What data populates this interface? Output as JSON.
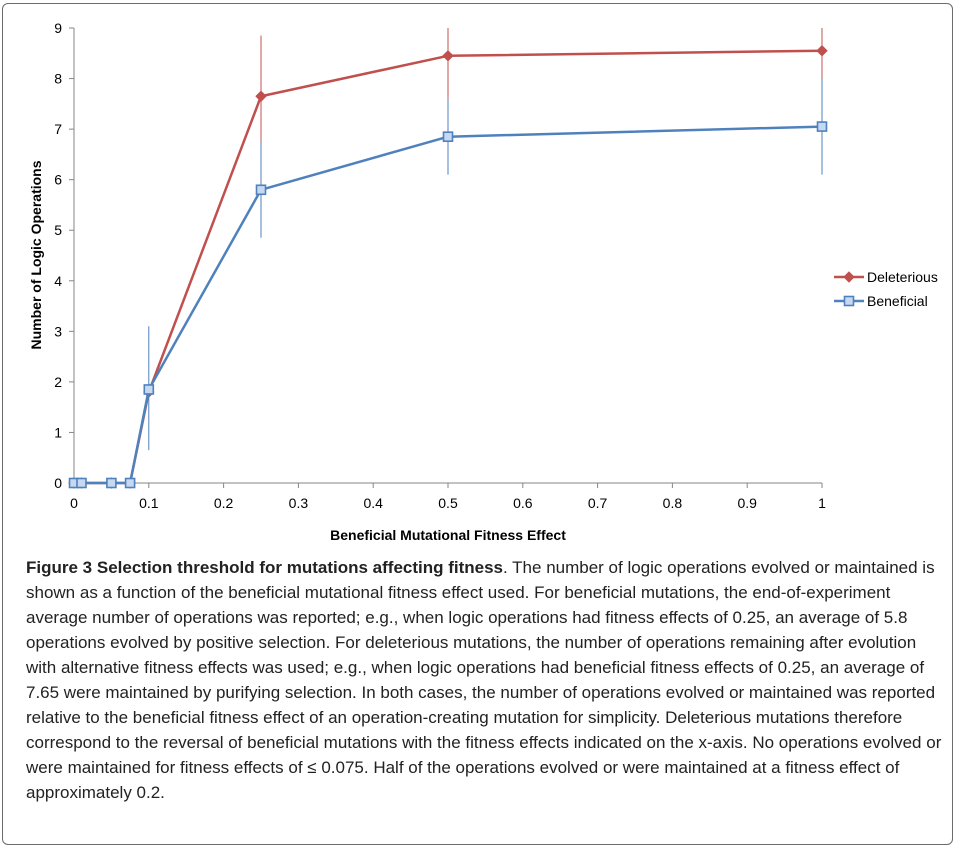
{
  "chart_data": {
    "type": "line",
    "xlabel": "Beneficial Mutational Fitness Effect",
    "ylabel": "Number of Logic Operations",
    "xlim": [
      0,
      1
    ],
    "ylim": [
      0,
      9
    ],
    "x_ticks": [
      "0",
      "0.1",
      "0.2",
      "0.3",
      "0.4",
      "0.5",
      "0.6",
      "0.7",
      "0.8",
      "0.9",
      "1"
    ],
    "y_ticks": [
      "0",
      "1",
      "2",
      "3",
      "4",
      "5",
      "6",
      "7",
      "8",
      "9"
    ],
    "legend_position": "right",
    "series": [
      {
        "name": "Deleterious",
        "color": "#c0504d",
        "marker": "diamond",
        "x": [
          0,
          0.01,
          0.05,
          0.075,
          0.1,
          0.25,
          0.5,
          1
        ],
        "y": [
          0,
          0,
          0,
          0,
          1.8,
          7.65,
          8.45,
          8.55
        ],
        "err_low": [
          0,
          0,
          0,
          0,
          1.8,
          6.5,
          7.6,
          8.0
        ],
        "err_high": [
          0,
          0,
          0,
          0,
          1.8,
          8.85,
          9.0,
          9.0
        ]
      },
      {
        "name": "Beneficial",
        "color": "#4f81bd",
        "marker": "square",
        "x": [
          0,
          0.01,
          0.05,
          0.075,
          0.1,
          0.25,
          0.5,
          1
        ],
        "y": [
          0,
          0,
          0,
          0,
          1.85,
          5.8,
          6.85,
          7.05
        ],
        "err_low": [
          0,
          0,
          0,
          0,
          0.65,
          4.85,
          6.1,
          6.1
        ],
        "err_high": [
          0,
          0,
          0,
          0,
          3.1,
          6.75,
          7.6,
          8.0
        ]
      }
    ]
  },
  "caption": {
    "figure_label": "Figure 3",
    "title": "Selection threshold for mutations affecting fitness",
    "body": "The number of logic operations evolved or maintained is shown as a function of the beneficial mutational fitness effect used. For beneficial mutations, the end-of-experiment average number of operations was reported; e.g., when logic operations had fitness effects of 0.25, an average of 5.8 operations evolved by positive selection. For deleterious mutations, the number of operations remaining after evolution with alternative fitness effects was used; e.g., when logic operations had beneficial fitness effects of 0.25, an average of 7.65 were maintained by purifying selection. In both cases, the number of operations evolved or maintained was reported relative to the beneficial fitness effect of an operation-creating mutation for simplicity. Deleterious mutations therefore correspond to the reversal of beneficial mutations with the fitness effects indicated on the x-axis. No operations evolved or were maintained for fitness effects of ≤ 0.075. Half of the operations evolved or were maintained at a fitness effect of approximately 0.2."
  }
}
